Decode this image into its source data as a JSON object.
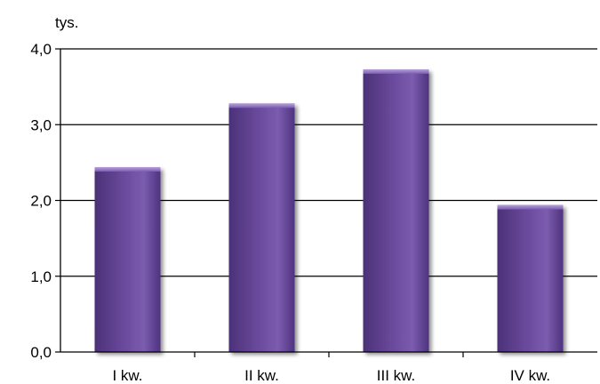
{
  "chart_data": {
    "type": "bar",
    "unit_label": "tys.",
    "categories": [
      "I kw.",
      "II kw.",
      "III kw.",
      "IV kw."
    ],
    "values": [
      2.44,
      3.28,
      3.73,
      1.94
    ],
    "ylim": [
      0,
      4
    ],
    "yticks": [
      "0,0",
      "1,0",
      "2,0",
      "3,0",
      "4,0"
    ],
    "grid": true,
    "legend": "none",
    "colors": {
      "bar": "#6a4a9c",
      "bar_highlight": "#9a7fc7",
      "bar_shadow": "#3f2a66",
      "grid": "#000000"
    }
  }
}
